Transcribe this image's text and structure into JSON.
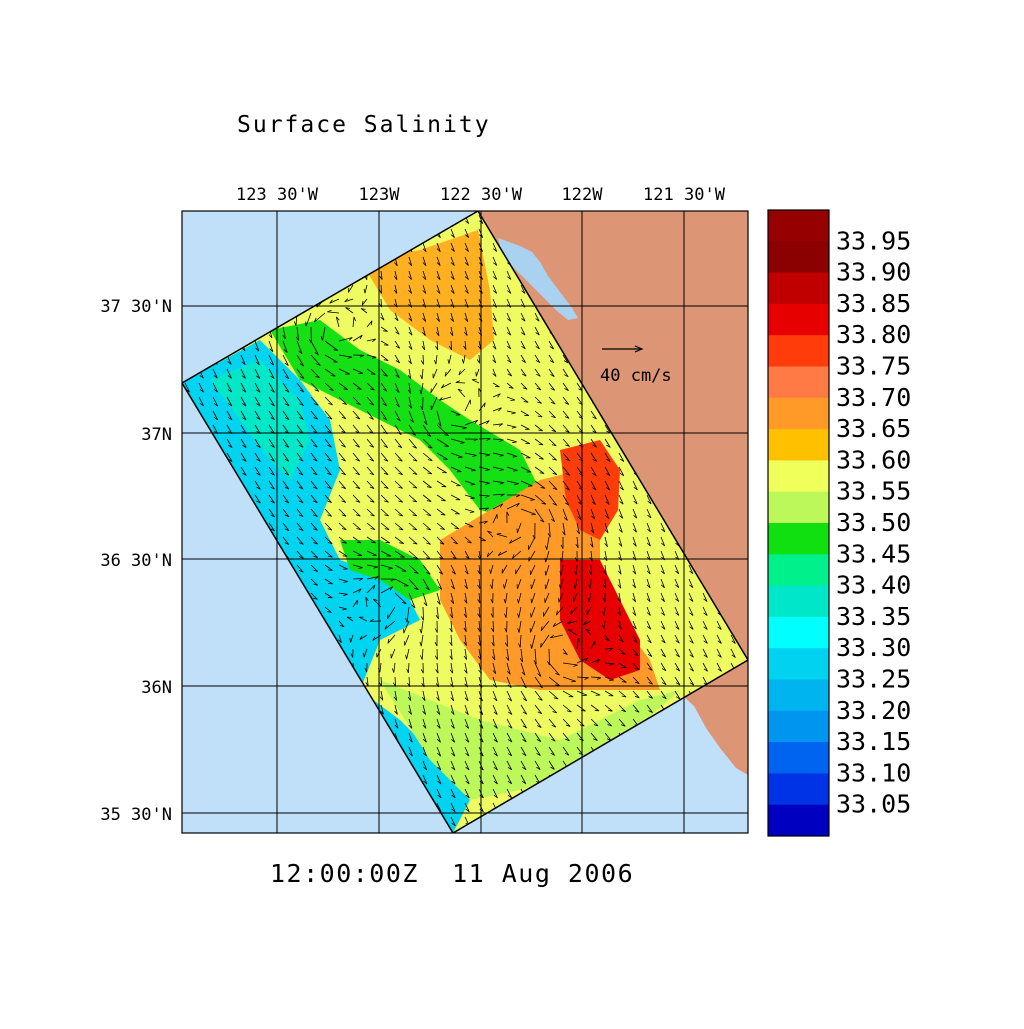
{
  "title": "Surface Salinity",
  "timestamp": "12:00:00Z  11 Aug 2006",
  "lon_labels": [
    "123 30'W",
    "123W",
    "122 30'W",
    "122W",
    "121 30'W"
  ],
  "lat_labels": [
    "37 30'N",
    "37N",
    "36 30'N",
    "36N",
    "35 30'N"
  ],
  "vector_scale_label": "40 cm/s",
  "colorbar": {
    "labels": [
      "33.95",
      "33.90",
      "33.85",
      "33.80",
      "33.75",
      "33.70",
      "33.65",
      "33.60",
      "33.55",
      "33.50",
      "33.45",
      "33.40",
      "33.35",
      "33.30",
      "33.25",
      "33.20",
      "33.15",
      "33.10",
      "33.05"
    ],
    "colors": [
      "#8b0000",
      "#c00000",
      "#e60000",
      "#ff3c0a",
      "#ff7a45",
      "#ff9a28",
      "#ffc000",
      "#f0ff5a",
      "#bdf85a",
      "#10e010",
      "#00f08c",
      "#00e6c8",
      "#00ffff",
      "#00d2f0",
      "#00b4f0",
      "#0096f0",
      "#0064f0",
      "#0032e6",
      "#0000c0"
    ]
  },
  "colors": {
    "ocean": "#c0e0fa",
    "land": "#dc9676",
    "bay": "#a9d2f0"
  }
}
